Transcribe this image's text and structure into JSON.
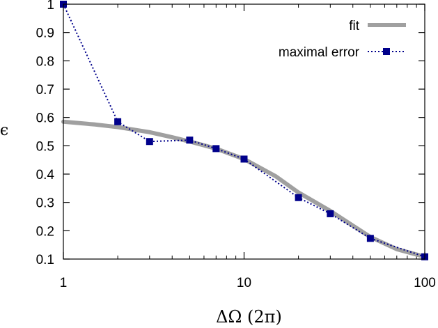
{
  "chart_data": {
    "type": "line",
    "xscale": "log",
    "xlim": [
      1,
      100
    ],
    "ylim": [
      0.1,
      1.0
    ],
    "xticks": [
      {
        "value": 1,
        "label": "1"
      },
      {
        "value": 10,
        "label": "10"
      },
      {
        "value": 100,
        "label": "100"
      }
    ],
    "yticks": [
      {
        "value": 0.1,
        "label": "0.1"
      },
      {
        "value": 0.2,
        "label": "0.2"
      },
      {
        "value": 0.3,
        "label": "0.3"
      },
      {
        "value": 0.4,
        "label": "0.4"
      },
      {
        "value": 0.5,
        "label": "0.5"
      },
      {
        "value": 0.6,
        "label": "0.6"
      },
      {
        "value": 0.7,
        "label": "0.7"
      },
      {
        "value": 0.8,
        "label": "0.8"
      },
      {
        "value": 0.9,
        "label": "0.9"
      },
      {
        "value": 1.0,
        "label": "1"
      }
    ],
    "xlabel": "ΔΩ (2π)",
    "ylabel": "ϵ",
    "grid": false,
    "legend_position": "top-right",
    "series": [
      {
        "name": "fit",
        "style": "thick-line",
        "color": "#a0a0a0",
        "x": [
          1,
          1.5,
          2,
          3,
          4,
          5,
          7,
          10,
          15,
          20,
          30,
          50,
          70,
          100
        ],
        "y": [
          0.585,
          0.575,
          0.566,
          0.548,
          0.53,
          0.515,
          0.49,
          0.453,
          0.392,
          0.335,
          0.27,
          0.178,
          0.135,
          0.108
        ]
      },
      {
        "name": "maximal error",
        "style": "dotted-line-square-markers",
        "color": "#00008b",
        "x": [
          1,
          2,
          3,
          5,
          7,
          10,
          20,
          30,
          50,
          100
        ],
        "y": [
          1.0,
          0.585,
          0.515,
          0.52,
          0.49,
          0.453,
          0.317,
          0.26,
          0.173,
          0.108
        ]
      }
    ]
  }
}
